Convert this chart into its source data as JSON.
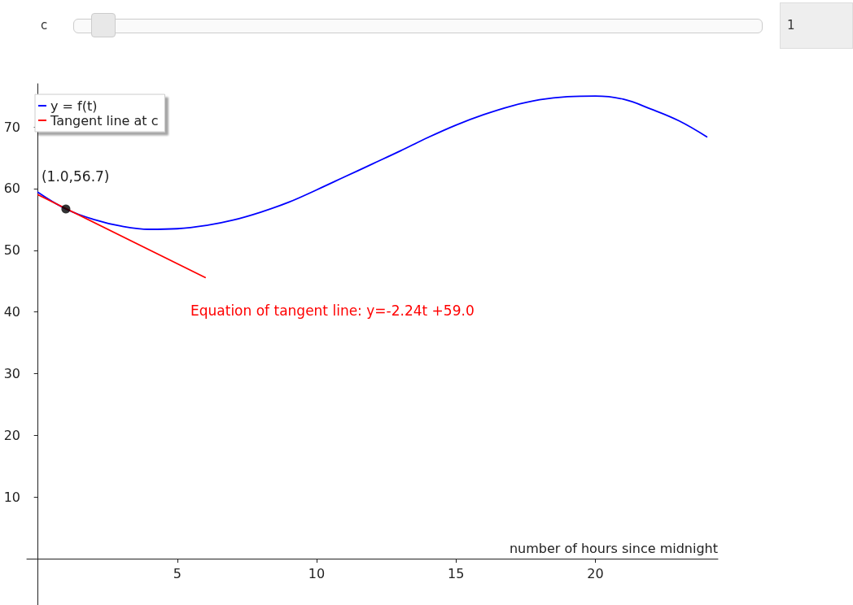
{
  "chart_data": {
    "type": "line",
    "xlabel": "number of hours since midnight",
    "xlim": [
      -0.4,
      24.4
    ],
    "xticks": [
      5,
      10,
      15,
      20
    ],
    "ylim": [
      -7.5,
      77
    ],
    "yticks": [
      10,
      20,
      30,
      40,
      50,
      60,
      70
    ],
    "grid": false,
    "legend": "top left",
    "marker": "none",
    "line_style": "solid",
    "series": [
      {
        "name": "y = f(t)",
        "color": "#0000ff",
        "x": [
          0,
          1,
          2,
          3,
          4,
          5,
          6,
          7,
          8,
          9,
          10,
          11,
          12,
          13,
          14,
          15,
          16,
          17,
          18,
          19,
          20,
          21,
          22,
          23,
          24
        ],
        "values": [
          59.4,
          56.7,
          55.0,
          53.9,
          53.4,
          53.5,
          54.0,
          54.9,
          56.2,
          57.8,
          59.8,
          61.9,
          64.0,
          66.1,
          68.3,
          70.3,
          72.0,
          73.4,
          74.4,
          74.9,
          75.0,
          74.5,
          72.9,
          71.0,
          68.4
        ]
      },
      {
        "name": "Tangent line at c",
        "color": "#ff0000",
        "x": [
          0,
          6
        ],
        "values": [
          59.0,
          45.6
        ]
      },
      {
        "type": "scatter",
        "marker": "circle",
        "color": "#000000",
        "x": [
          1
        ],
        "values": [
          56.7
        ]
      }
    ],
    "annotations": [
      {
        "text": "(1.0,56.7)",
        "x": 1,
        "y": 56.7
      },
      "Equation of tangent line: y=-2.24t +59.0",
      "c",
      "1"
    ]
  }
}
